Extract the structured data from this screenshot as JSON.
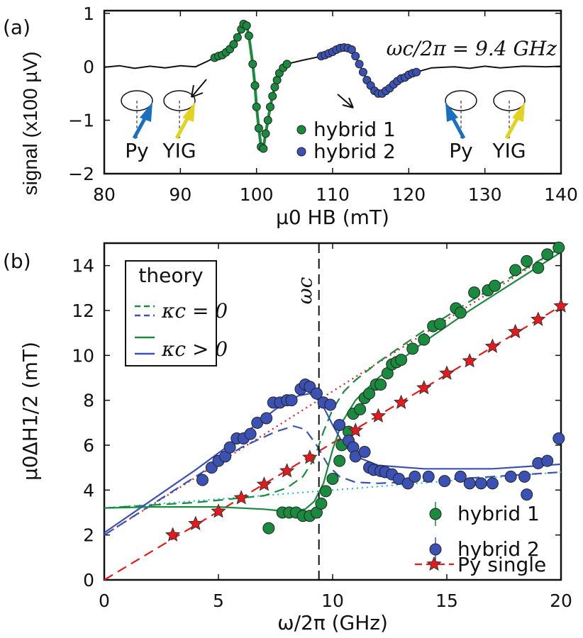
{
  "chart_data": [
    {
      "panel": "(a)",
      "type": "line",
      "xlabel": "μ0 HB (mT)",
      "ylabel": "signal (x100 µV)",
      "xlim": [
        80,
        140
      ],
      "ylim": [
        -2,
        1.05
      ],
      "xticks": [
        80,
        90,
        100,
        110,
        120,
        130,
        140
      ],
      "yticks": [
        -2,
        -1,
        0,
        1
      ],
      "annotation": "ωc/2π = 9.4 GHz",
      "cartoon_labels": {
        "py": "Py",
        "yig": "YIG"
      },
      "colors": {
        "h1": "#1a8a3e",
        "h2": "#3b52b4",
        "py": "#1a6fc0",
        "yig": "#e3d21e",
        "trace": "#111111"
      },
      "trace": [
        [
          80,
          -0.01
        ],
        [
          82,
          0.02
        ],
        [
          84,
          -0.03
        ],
        [
          86,
          0.01
        ],
        [
          88,
          -0.02
        ],
        [
          90,
          0.02
        ],
        [
          92,
          0.0
        ],
        [
          93.5,
          0.1
        ],
        [
          94.5,
          0.17
        ],
        [
          95.5,
          0.22
        ],
        [
          96.5,
          0.33
        ],
        [
          97.5,
          0.55
        ],
        [
          98.3,
          0.8
        ],
        [
          98.7,
          0.77
        ],
        [
          99,
          0.58
        ],
        [
          99.5,
          0.05
        ],
        [
          100,
          -0.75
        ],
        [
          100.6,
          -1.5
        ],
        [
          100.9,
          -1.53
        ],
        [
          101.5,
          -1.0
        ],
        [
          102.1,
          -0.55
        ],
        [
          102.7,
          -0.25
        ],
        [
          103.5,
          -0.02
        ],
        [
          104.5,
          0.07
        ],
        [
          106,
          0.12
        ],
        [
          108,
          0.18
        ],
        [
          110,
          0.3
        ],
        [
          111.5,
          0.36
        ],
        [
          112.5,
          0.32
        ],
        [
          113.5,
          0.05
        ],
        [
          114.5,
          -0.25
        ],
        [
          115.5,
          -0.45
        ],
        [
          116.3,
          -0.5
        ],
        [
          117,
          -0.45
        ],
        [
          118,
          -0.33
        ],
        [
          119,
          -0.22
        ],
        [
          120,
          -0.15
        ],
        [
          121.5,
          -0.08
        ],
        [
          123,
          -0.02
        ],
        [
          126,
          0.0
        ],
        [
          128,
          -0.03
        ],
        [
          130,
          0.01
        ],
        [
          132,
          -0.02
        ],
        [
          135,
          0.01
        ],
        [
          138,
          0.0
        ],
        [
          140,
          0.01
        ]
      ],
      "series": [
        {
          "name": "hybrid 1",
          "points": [
            [
              94.5,
              0.17
            ],
            [
              95,
              0.2
            ],
            [
              95.5,
              0.22
            ],
            [
              96,
              0.27
            ],
            [
              96.5,
              0.33
            ],
            [
              97,
              0.42
            ],
            [
              97.5,
              0.55
            ],
            [
              98,
              0.7
            ],
            [
              98.3,
              0.8
            ],
            [
              98.7,
              0.77
            ],
            [
              99,
              0.58
            ],
            [
              99.5,
              0.05
            ],
            [
              99.8,
              -0.35
            ],
            [
              100,
              -0.75
            ],
            [
              100.3,
              -1.15
            ],
            [
              100.6,
              -1.5
            ],
            [
              100.9,
              -1.53
            ],
            [
              101.2,
              -1.25
            ],
            [
              101.5,
              -1.0
            ],
            [
              101.8,
              -0.75
            ],
            [
              102.1,
              -0.55
            ],
            [
              102.4,
              -0.38
            ],
            [
              102.7,
              -0.25
            ],
            [
              103,
              -0.12
            ],
            [
              103.5,
              -0.02
            ],
            [
              104,
              0.05
            ]
          ]
        },
        {
          "name": "hybrid 2",
          "points": [
            [
              108.5,
              0.2
            ],
            [
              109,
              0.22
            ],
            [
              109.5,
              0.25
            ],
            [
              110,
              0.28
            ],
            [
              110.5,
              0.32
            ],
            [
              111,
              0.35
            ],
            [
              111.5,
              0.36
            ],
            [
              112,
              0.35
            ],
            [
              112.5,
              0.32
            ],
            [
              113,
              0.2
            ],
            [
              113.5,
              0.05
            ],
            [
              114,
              -0.1
            ],
            [
              114.5,
              -0.25
            ],
            [
              115,
              -0.35
            ],
            [
              115.5,
              -0.45
            ],
            [
              116,
              -0.5
            ],
            [
              116.5,
              -0.5
            ],
            [
              117,
              -0.45
            ],
            [
              117.5,
              -0.4
            ],
            [
              118,
              -0.33
            ],
            [
              118.5,
              -0.27
            ],
            [
              119,
              -0.22
            ],
            [
              119.5,
              -0.2
            ],
            [
              120,
              -0.15
            ],
            [
              120.5,
              -0.12
            ],
            [
              121,
              -0.1
            ]
          ]
        }
      ]
    },
    {
      "panel": "(b)",
      "type": "scatter",
      "xlabel": "ω/2π (GHz)",
      "ylabel": "μ0ΔH1/2 (mT)",
      "xlim": [
        0,
        20
      ],
      "ylim": [
        0,
        15
      ],
      "xticks": [
        0,
        5,
        10,
        15,
        20
      ],
      "yticks": [
        0,
        2,
        4,
        6,
        8,
        10,
        12,
        14
      ],
      "vline": {
        "x": 9.4,
        "label": "ωc"
      },
      "legend_theory": {
        "title": "theory",
        "k0": "κc = 0",
        "kpos": "κc > 0"
      },
      "legend": [
        "hybrid 1",
        "hybrid 2",
        "Py single"
      ],
      "colors": {
        "h1": "#1a8a3e",
        "h2": "#3b52b4",
        "py": "#e41a1c",
        "cyan": "#22c0c8"
      },
      "series": [
        {
          "name": "hybrid 1",
          "points": [
            [
              7.2,
              2.3
            ],
            [
              7.8,
              3.0
            ],
            [
              8.1,
              3.0
            ],
            [
              8.4,
              3.0
            ],
            [
              8.7,
              2.85
            ],
            [
              9.0,
              2.85
            ],
            [
              9.3,
              3.0
            ],
            [
              9.5,
              3.4
            ],
            [
              9.7,
              3.95
            ],
            [
              10.0,
              4.5
            ],
            [
              10.3,
              5.3
            ],
            [
              10.4,
              6.0
            ],
            [
              10.7,
              6.6
            ],
            [
              10.9,
              7.4
            ],
            [
              11.2,
              7.6
            ],
            [
              11.4,
              8.1
            ],
            [
              11.6,
              8.3
            ],
            [
              11.9,
              8.7
            ],
            [
              12.1,
              8.7
            ],
            [
              12.4,
              9.2
            ],
            [
              12.6,
              9.6
            ],
            [
              12.8,
              9.7
            ],
            [
              13.0,
              9.8
            ],
            [
              13.5,
              10.3
            ],
            [
              14.0,
              10.7
            ],
            [
              14.4,
              11.3
            ],
            [
              14.7,
              11.4
            ],
            [
              15.4,
              12.1
            ],
            [
              15.6,
              11.9
            ],
            [
              16.2,
              12.8
            ],
            [
              16.8,
              12.9
            ],
            [
              17.1,
              13.1
            ],
            [
              18.0,
              13.8
            ],
            [
              18.5,
              14.2
            ],
            [
              19.0,
              13.9
            ],
            [
              19.4,
              14.5
            ],
            [
              19.9,
              14.8
            ]
          ]
        },
        {
          "name": "hybrid 2",
          "points": [
            [
              4.3,
              4.45
            ],
            [
              4.7,
              5.0
            ],
            [
              5.0,
              5.3
            ],
            [
              5.3,
              5.5
            ],
            [
              5.5,
              5.9
            ],
            [
              5.8,
              6.3
            ],
            [
              6.1,
              6.3
            ],
            [
              6.4,
              6.5
            ],
            [
              6.7,
              7.0
            ],
            [
              7.1,
              7.2
            ],
            [
              7.4,
              7.9
            ],
            [
              7.7,
              7.9
            ],
            [
              8.0,
              8.0
            ],
            [
              8.2,
              8.0
            ],
            [
              8.6,
              8.5
            ],
            [
              8.8,
              8.7
            ],
            [
              9.0,
              8.6
            ],
            [
              9.3,
              8.3
            ],
            [
              9.6,
              7.9
            ],
            [
              9.9,
              7.8
            ],
            [
              10.3,
              6.9
            ],
            [
              10.7,
              6.2
            ],
            [
              10.9,
              5.9
            ],
            [
              11.0,
              5.5
            ],
            [
              11.4,
              5.7
            ],
            [
              11.6,
              5.0
            ],
            [
              11.8,
              4.9
            ],
            [
              12.1,
              4.85
            ],
            [
              12.3,
              4.8
            ],
            [
              12.6,
              4.7
            ],
            [
              12.9,
              4.5
            ],
            [
              13.3,
              4.3
            ],
            [
              13.6,
              4.6
            ],
            [
              14.2,
              4.6
            ],
            [
              14.9,
              4.4
            ],
            [
              15.6,
              4.6
            ],
            [
              16.0,
              4.3
            ],
            [
              16.5,
              4.3
            ],
            [
              17.0,
              4.3
            ],
            [
              17.8,
              4.6
            ],
            [
              18.4,
              4.6
            ],
            [
              18.5,
              3.8
            ],
            [
              19.0,
              5.2
            ],
            [
              19.4,
              5.3
            ],
            [
              19.9,
              6.3
            ]
          ]
        },
        {
          "name": "Py single",
          "points": [
            [
              3,
              2.0
            ],
            [
              4,
              2.5
            ],
            [
              5,
              3.05
            ],
            [
              6,
              3.65
            ],
            [
              7,
              4.25
            ],
            [
              8,
              4.85
            ],
            [
              9,
              5.45
            ],
            [
              11,
              6.65
            ],
            [
              12,
              7.3
            ],
            [
              13,
              7.9
            ],
            [
              14,
              8.55
            ],
            [
              15,
              9.2
            ],
            [
              16,
              9.75
            ],
            [
              17,
              10.4
            ],
            [
              18,
              11.05
            ],
            [
              19,
              11.6
            ],
            [
              20,
              12.2
            ]
          ]
        }
      ],
      "curves": [
        {
          "name": "Py single fit",
          "style": "dash",
          "color": "py",
          "points": [
            [
              0,
              0
            ],
            [
              20,
              12.2
            ]
          ]
        },
        {
          "name": "Py dotted",
          "style": "dot",
          "color": "py",
          "points": [
            [
              0,
              2.0
            ],
            [
              20,
              14.8
            ]
          ]
        },
        {
          "name": "cyan dotted",
          "style": "dot",
          "color": "cyan",
          "points": [
            [
              0,
              3.2
            ],
            [
              20,
              4.8
            ]
          ]
        },
        {
          "name": "hybrid 1 κc=0",
          "style": "dash",
          "color": "h1",
          "points": [
            [
              0,
              3.2
            ],
            [
              4,
              3.45
            ],
            [
              7,
              3.75
            ],
            [
              8,
              4.1
            ],
            [
              8.7,
              4.6
            ],
            [
              9.2,
              5.4
            ],
            [
              9.6,
              6.6
            ],
            [
              10,
              7.6
            ],
            [
              10.5,
              8.4
            ],
            [
              11,
              8.9
            ],
            [
              12,
              9.7
            ],
            [
              14,
              11.1
            ],
            [
              16,
              12.4
            ],
            [
              18,
              13.6
            ],
            [
              20,
              14.8
            ]
          ]
        },
        {
          "name": "hybrid 2 κc=0",
          "style": "dash",
          "color": "h2",
          "points": [
            [
              0,
              2.0
            ],
            [
              2,
              3.3
            ],
            [
              4,
              4.6
            ],
            [
              6,
              5.9
            ],
            [
              7.5,
              6.6
            ],
            [
              8.3,
              6.85
            ],
            [
              8.8,
              6.7
            ],
            [
              9.3,
              6.0
            ],
            [
              9.8,
              5.1
            ],
            [
              10.3,
              4.6
            ],
            [
              11,
              4.35
            ],
            [
              12,
              4.3
            ],
            [
              14,
              4.4
            ],
            [
              17,
              4.6
            ],
            [
              20,
              4.8
            ]
          ]
        },
        {
          "name": "hybrid 1 κc>0",
          "style": "solid",
          "color": "h1",
          "points": [
            [
              0,
              3.2
            ],
            [
              2,
              3.25
            ],
            [
              5,
              3.25
            ],
            [
              7,
              3.15
            ],
            [
              8,
              3.05
            ],
            [
              8.8,
              3.15
            ],
            [
              9.2,
              3.5
            ],
            [
              9.6,
              4.3
            ],
            [
              10,
              5.8
            ],
            [
              10.4,
              7.0
            ],
            [
              11,
              8.0
            ],
            [
              12,
              9.0
            ],
            [
              14,
              10.6
            ],
            [
              16,
              12.0
            ],
            [
              18,
              13.3
            ],
            [
              20,
              14.6
            ]
          ]
        },
        {
          "name": "hybrid 2 κc>0",
          "style": "solid",
          "color": "h2",
          "points": [
            [
              0,
              2.1
            ],
            [
              2,
              3.5
            ],
            [
              4,
              4.9
            ],
            [
              6,
              6.4
            ],
            [
              7.5,
              7.6
            ],
            [
              8.5,
              8.2
            ],
            [
              9,
              8.3
            ],
            [
              9.5,
              7.9
            ],
            [
              10,
              6.9
            ],
            [
              10.5,
              6.0
            ],
            [
              11,
              5.5
            ],
            [
              12,
              5.1
            ],
            [
              14,
              4.95
            ],
            [
              17,
              4.95
            ],
            [
              20,
              5.15
            ]
          ]
        }
      ]
    }
  ]
}
